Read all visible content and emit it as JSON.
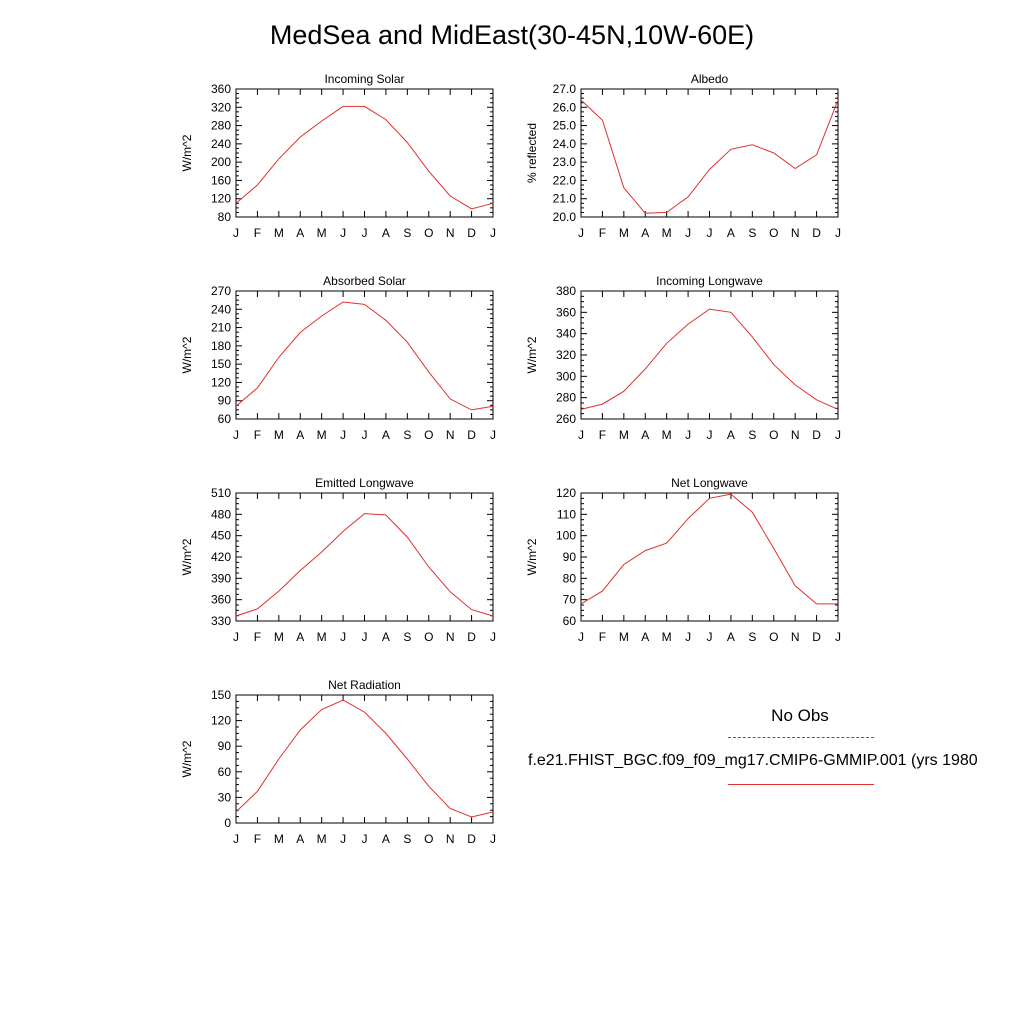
{
  "page": {
    "title": "MedSea and MidEast(30-45N,10W-60E)"
  },
  "legend": {
    "obs_label": "No Obs",
    "obs_color": "#4a4ae8",
    "case_label": "f.e21.FHIST_BGC.f09_f09_mg17.CMIP6-GMMIP.001 (yrs 1980",
    "case_color": "#e03030"
  },
  "chart_data": [
    {
      "type": "line",
      "title": "Incoming Solar",
      "ylabel": "W/m^2",
      "x": [
        "J",
        "F",
        "M",
        "A",
        "M",
        "J",
        "J",
        "A",
        "S",
        "O",
        "N",
        "D",
        "J"
      ],
      "ylim": [
        80,
        360
      ],
      "yticks": [
        "80",
        "120",
        "160",
        "200",
        "240",
        "280",
        "320",
        "360"
      ],
      "series": [
        {
          "color": "#e03030",
          "values": [
            110,
            150,
            207,
            255,
            290,
            322,
            322,
            293,
            243,
            180,
            126,
            98,
            110
          ]
        }
      ]
    },
    {
      "type": "line",
      "title": "Albedo",
      "ylabel": "% reflected",
      "x": [
        "J",
        "F",
        "M",
        "A",
        "M",
        "J",
        "J",
        "A",
        "S",
        "O",
        "N",
        "D",
        "J"
      ],
      "ylim": [
        20.0,
        27.0
      ],
      "yticks": [
        "20.0",
        "21.0",
        "22.0",
        "23.0",
        "24.0",
        "25.0",
        "26.0",
        "27.0"
      ],
      "series": [
        {
          "color": "#e03030",
          "values": [
            26.4,
            25.3,
            21.6,
            20.2,
            20.25,
            21.1,
            22.6,
            23.7,
            23.95,
            23.5,
            22.65,
            23.4,
            26.4
          ]
        }
      ]
    },
    {
      "type": "line",
      "title": "Absorbed Solar",
      "ylabel": "W/m^2",
      "x": [
        "J",
        "F",
        "M",
        "A",
        "M",
        "J",
        "J",
        "A",
        "S",
        "O",
        "N",
        "D",
        "J"
      ],
      "ylim": [
        60,
        270
      ],
      "yticks": [
        "60",
        "90",
        "120",
        "150",
        "180",
        "210",
        "240",
        "270"
      ],
      "series": [
        {
          "color": "#e03030",
          "values": [
            81,
            111,
            161,
            202,
            229,
            252,
            248,
            222,
            186,
            137,
            93,
            75,
            81
          ]
        }
      ]
    },
    {
      "type": "line",
      "title": "Incoming Longwave",
      "ylabel": "W/m^2",
      "x": [
        "J",
        "F",
        "M",
        "A",
        "M",
        "J",
        "J",
        "A",
        "S",
        "O",
        "N",
        "D",
        "J"
      ],
      "ylim": [
        260,
        380
      ],
      "yticks": [
        "260",
        "280",
        "300",
        "320",
        "340",
        "360",
        "380"
      ],
      "series": [
        {
          "color": "#e03030",
          "values": [
            269,
            274,
            286,
            307,
            331,
            349,
            363,
            360,
            337,
            311,
            292,
            278,
            269
          ]
        }
      ]
    },
    {
      "type": "line",
      "title": "Emitted Longwave",
      "ylabel": "W/m^2",
      "x": [
        "J",
        "F",
        "M",
        "A",
        "M",
        "J",
        "J",
        "A",
        "S",
        "O",
        "N",
        "D",
        "J"
      ],
      "ylim": [
        330,
        510
      ],
      "yticks": [
        "330",
        "360",
        "390",
        "420",
        "450",
        "480",
        "510"
      ],
      "series": [
        {
          "color": "#e03030",
          "values": [
            337,
            347,
            372,
            401,
            427,
            456,
            481,
            479,
            448,
            406,
            371,
            346,
            337
          ]
        }
      ]
    },
    {
      "type": "line",
      "title": "Net Longwave",
      "ylabel": "W/m^2",
      "x": [
        "J",
        "F",
        "M",
        "A",
        "M",
        "J",
        "J",
        "A",
        "S",
        "O",
        "N",
        "D",
        "J"
      ],
      "ylim": [
        60,
        120
      ],
      "yticks": [
        "60",
        "70",
        "80",
        "90",
        "100",
        "110",
        "120"
      ],
      "series": [
        {
          "color": "#e03030",
          "values": [
            68,
            74,
            86.5,
            93,
            96.5,
            108,
            117.5,
            119.5,
            111,
            94,
            76.5,
            68,
            68
          ]
        }
      ]
    },
    {
      "type": "line",
      "title": "Net Radiation",
      "ylabel": "W/m^2",
      "x": [
        "J",
        "F",
        "M",
        "A",
        "M",
        "J",
        "J",
        "A",
        "S",
        "O",
        "N",
        "D",
        "J"
      ],
      "ylim": [
        0,
        150
      ],
      "yticks": [
        "0",
        "30",
        "60",
        "90",
        "120",
        "150"
      ],
      "series": [
        {
          "color": "#e03030",
          "values": [
            13,
            37,
            75,
            109,
            133,
            144,
            130,
            105,
            75,
            43,
            17,
            7,
            13
          ]
        }
      ]
    }
  ]
}
